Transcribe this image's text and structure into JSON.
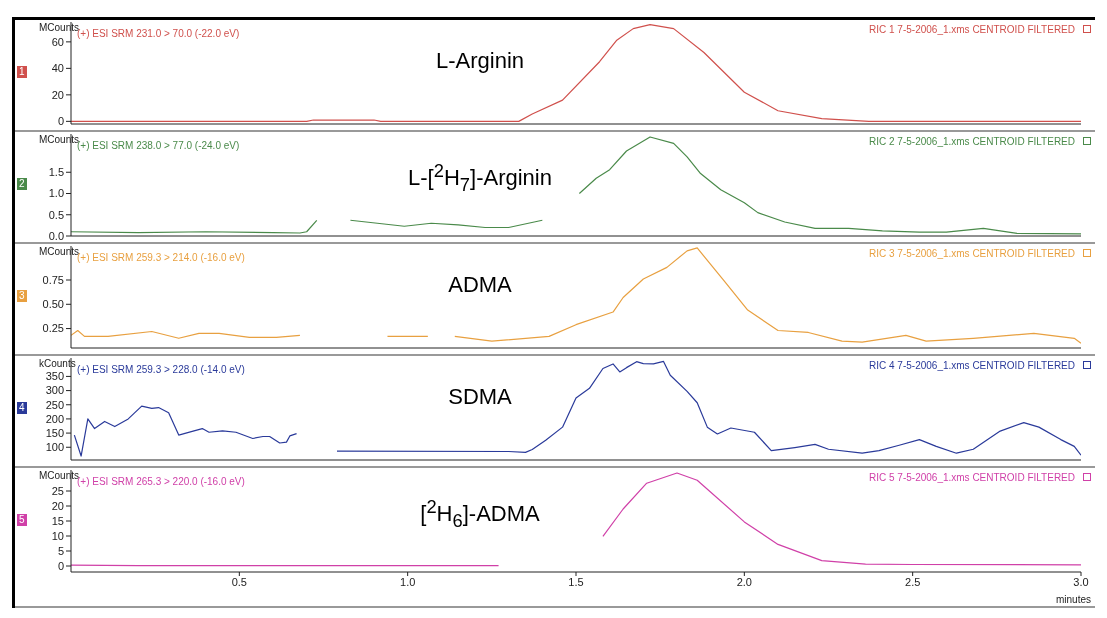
{
  "chart_data": [
    {
      "type": "line",
      "title": "L-Arginin",
      "subtitle": "(+) ESI SRM 231.0 > 70.0 (-22.0 eV)",
      "annotations": [
        "RIC 1 7-5-2006_1.xms CENTROID FILTERED",
        "1"
      ],
      "ylabel": "MCounts",
      "color": "#d0504c",
      "x": [
        0,
        0.7,
        0.72,
        0.9,
        0.92,
        1.33,
        1.37,
        1.46,
        1.57,
        1.62,
        1.67,
        1.72,
        1.79,
        1.88,
        2.0,
        2.1,
        2.23,
        2.37,
        3.0
      ],
      "values": [
        0,
        0,
        1,
        1,
        0,
        0,
        5.6,
        16,
        45,
        61,
        70,
        73,
        70,
        52,
        22,
        8,
        2,
        0,
        0
      ],
      "xlim": [
        0,
        3.0
      ],
      "xticks": [
        {
          "value": 0.5,
          "label": null
        },
        {
          "value": 1,
          "label": null
        },
        {
          "value": 1.5,
          "label": null
        },
        {
          "value": 2,
          "label": null
        },
        {
          "value": 2.5,
          "label": null
        },
        {
          "value": 3,
          "label": null
        }
      ],
      "ylim": [
        -2,
        75
      ],
      "yticks": [
        0,
        20,
        40,
        60
      ],
      "tick_labels": "y"
    },
    {
      "type": "line",
      "title": "L-[$^{2}$H$_{7}$]-Arginin",
      "subtitle": "(+) ESI SRM 238.0 > 77.0 (-24.0 eV)",
      "annotations": [
        "RIC 2 7-5-2006_1.xms CENTROID FILTERED",
        "2"
      ],
      "ylabel": "MCounts",
      "color": "#4a8a4a",
      "x": [
        0,
        0.2,
        0.4,
        0.6,
        0.68,
        0.7,
        0.73,
        0.75,
        0.83,
        0.99,
        1.07,
        1.15,
        1.23,
        1.3,
        1.4,
        1.45,
        1.51,
        1.56,
        1.6,
        1.65,
        1.72,
        1.79,
        1.83,
        1.87,
        1.93,
        2.0,
        2.04,
        2.12,
        2.21,
        2.31,
        2.41,
        2.52,
        2.6,
        2.71,
        2.81,
        3.0
      ],
      "values": [
        0.1,
        0.08,
        0.1,
        0.08,
        0.07,
        0.1,
        0.37,
        null,
        0.37,
        0.23,
        0.3,
        0.26,
        0.2,
        0.2,
        0.37,
        null,
        1.0,
        1.36,
        1.56,
        2.0,
        2.33,
        2.18,
        1.86,
        1.47,
        1.09,
        0.78,
        0.55,
        0.33,
        0.18,
        0.18,
        0.12,
        0.09,
        0.09,
        0.18,
        0.06,
        0.05
      ],
      "xlim": [
        0,
        3.0
      ],
      "xticks": [
        {
          "value": 0.5,
          "label": null
        },
        {
          "value": 1,
          "label": null
        },
        {
          "value": 1.5,
          "label": null
        },
        {
          "value": 2,
          "label": null
        },
        {
          "value": 2.5,
          "label": null
        },
        {
          "value": 3,
          "label": null
        }
      ],
      "ylim": [
        0,
        2.4
      ],
      "yticks": [
        {
          "value": 0,
          "label": "0.0"
        },
        0.5,
        {
          "value": 1,
          "label": "1.0"
        },
        1.5
      ],
      "tick_labels": "y"
    },
    {
      "type": "line",
      "title": "ADMA",
      "subtitle": "(+) ESI SRM 259.3 > 214.0 (-16.0 eV)",
      "annotations": [
        "RIC 3 7-5-2006_1.xms CENTROID FILTERED",
        "3"
      ],
      "ylabel": "MCounts",
      "color": "#e8a040",
      "x": [
        0,
        0.02,
        0.04,
        0.11,
        0.24,
        0.32,
        0.38,
        0.44,
        0.53,
        0.61,
        0.68,
        0.8,
        0.94,
        1.06,
        1.1,
        1.14,
        1.25,
        1.42,
        1.5,
        1.61,
        1.64,
        1.7,
        1.77,
        1.83,
        1.86,
        1.94,
        2.01,
        2.1,
        2.19,
        2.29,
        2.35,
        2.48,
        2.54,
        2.68,
        2.86,
        2.98,
        3.0
      ],
      "values": [
        0.18,
        0.23,
        0.17,
        0.17,
        0.22,
        0.15,
        0.2,
        0.2,
        0.16,
        0.16,
        0.18,
        null,
        0.17,
        0.17,
        null,
        0.17,
        0.12,
        0.17,
        0.29,
        0.42,
        0.57,
        0.76,
        0.88,
        1.05,
        1.08,
        0.74,
        0.44,
        0.23,
        0.21,
        0.12,
        0.11,
        0.18,
        0.12,
        0.15,
        0.2,
        0.15,
        0.1
      ],
      "xlim": [
        0,
        3.0
      ],
      "xticks": [
        {
          "value": 0.5,
          "label": null
        },
        {
          "value": 1,
          "label": null
        },
        {
          "value": 1.5,
          "label": null
        },
        {
          "value": 2,
          "label": null
        },
        {
          "value": 2.5,
          "label": null
        },
        {
          "value": 3,
          "label": null
        }
      ],
      "ylim": [
        0.05,
        1.1
      ],
      "yticks": [
        0.25,
        {
          "value": 0.5,
          "label": "0.50"
        },
        0.75
      ],
      "tick_labels": "y"
    },
    {
      "type": "line",
      "title": "SDMA",
      "subtitle": "(+) ESI SRM 259.3 > 228.0 (-14.0 eV)",
      "annotations": [
        "RIC 4 7-5-2006_1.xms CENTROID FILTERED",
        "4"
      ],
      "ylabel": "kCounts",
      "color": "#2a3a9a",
      "x": [
        0.01,
        0.03,
        0.05,
        0.07,
        0.1,
        0.13,
        0.17,
        0.21,
        0.24,
        0.26,
        0.29,
        0.32,
        0.36,
        0.39,
        0.41,
        0.45,
        0.49,
        0.54,
        0.57,
        0.59,
        0.62,
        0.64,
        0.65,
        0.67,
        0.72,
        0.79,
        1.3,
        1.35,
        1.37,
        1.41,
        1.46,
        1.5,
        1.54,
        1.58,
        1.61,
        1.63,
        1.65,
        1.68,
        1.7,
        1.73,
        1.76,
        1.78,
        1.83,
        1.86,
        1.89,
        1.92,
        1.96,
        2.03,
        2.08,
        2.15,
        2.21,
        2.25,
        2.35,
        2.4,
        2.46,
        2.52,
        2.57,
        2.63,
        2.68,
        2.76,
        2.83,
        2.875,
        2.94,
        2.98,
        3.0
      ],
      "values": [
        143,
        69,
        200,
        166,
        191,
        173,
        200,
        245,
        237,
        240,
        222,
        143,
        156,
        166,
        153,
        158,
        153,
        131,
        138,
        138,
        115,
        118,
        140,
        148,
        null,
        86,
        85,
        82,
        92,
        125,
        171,
        274,
        308,
        378,
        394,
        366,
        381,
        402,
        395,
        394,
        403,
        354,
        297,
        257,
        171,
        147,
        168,
        153,
        88,
        99,
        110,
        93,
        79,
        88,
        107,
        127,
        103,
        79,
        93,
        157,
        187,
        171,
        127,
        103,
        72
      ],
      "xlim": [
        0,
        3.0
      ],
      "xticks": [
        {
          "value": 0.5,
          "label": null
        },
        {
          "value": 1,
          "label": null
        },
        {
          "value": 1.5,
          "label": null
        },
        {
          "value": 2,
          "label": null
        },
        {
          "value": 2.5,
          "label": null
        },
        {
          "value": 3,
          "label": null
        }
      ],
      "ylim": [
        55,
        415
      ],
      "yticks": [
        100,
        150,
        200,
        250,
        300,
        350
      ],
      "tick_labels": "y"
    },
    {
      "type": "line",
      "title": "[$^{2}$H$_{6}$]-ADMA",
      "subtitle": "(+) ESI SRM 265.3 > 220.0 (-16.0 eV)",
      "annotations": [
        "RIC 5 7-5-2006_1.xms CENTROID FILTERED",
        "5"
      ],
      "ylabel": "MCounts",
      "xlabel": "minutes",
      "color": "#d040a8",
      "x": [
        0,
        0.1,
        0.2,
        0.4,
        0.8,
        1.27,
        1.3,
        1.58,
        1.64,
        1.71,
        1.8,
        1.86,
        2.0,
        2.1,
        2.23,
        2.36,
        2.5,
        3.0
      ],
      "values": [
        0.3,
        0.2,
        0.1,
        0.1,
        0.1,
        0.1,
        null,
        9.9,
        19,
        27.6,
        31,
        28.6,
        14.7,
        7.2,
        1.8,
        0.6,
        0.5,
        0.4
      ],
      "xlim": [
        0,
        3.0
      ],
      "xticks": [
        0.5,
        {
          "value": 1,
          "label": "1.0"
        },
        1.5,
        {
          "value": 2,
          "label": "2.0"
        },
        2.5,
        {
          "value": 3,
          "label": "3.0"
        }
      ],
      "ylim": [
        -2,
        32
      ],
      "yticks": [
        0,
        5,
        10,
        15,
        20,
        25
      ]
    }
  ]
}
